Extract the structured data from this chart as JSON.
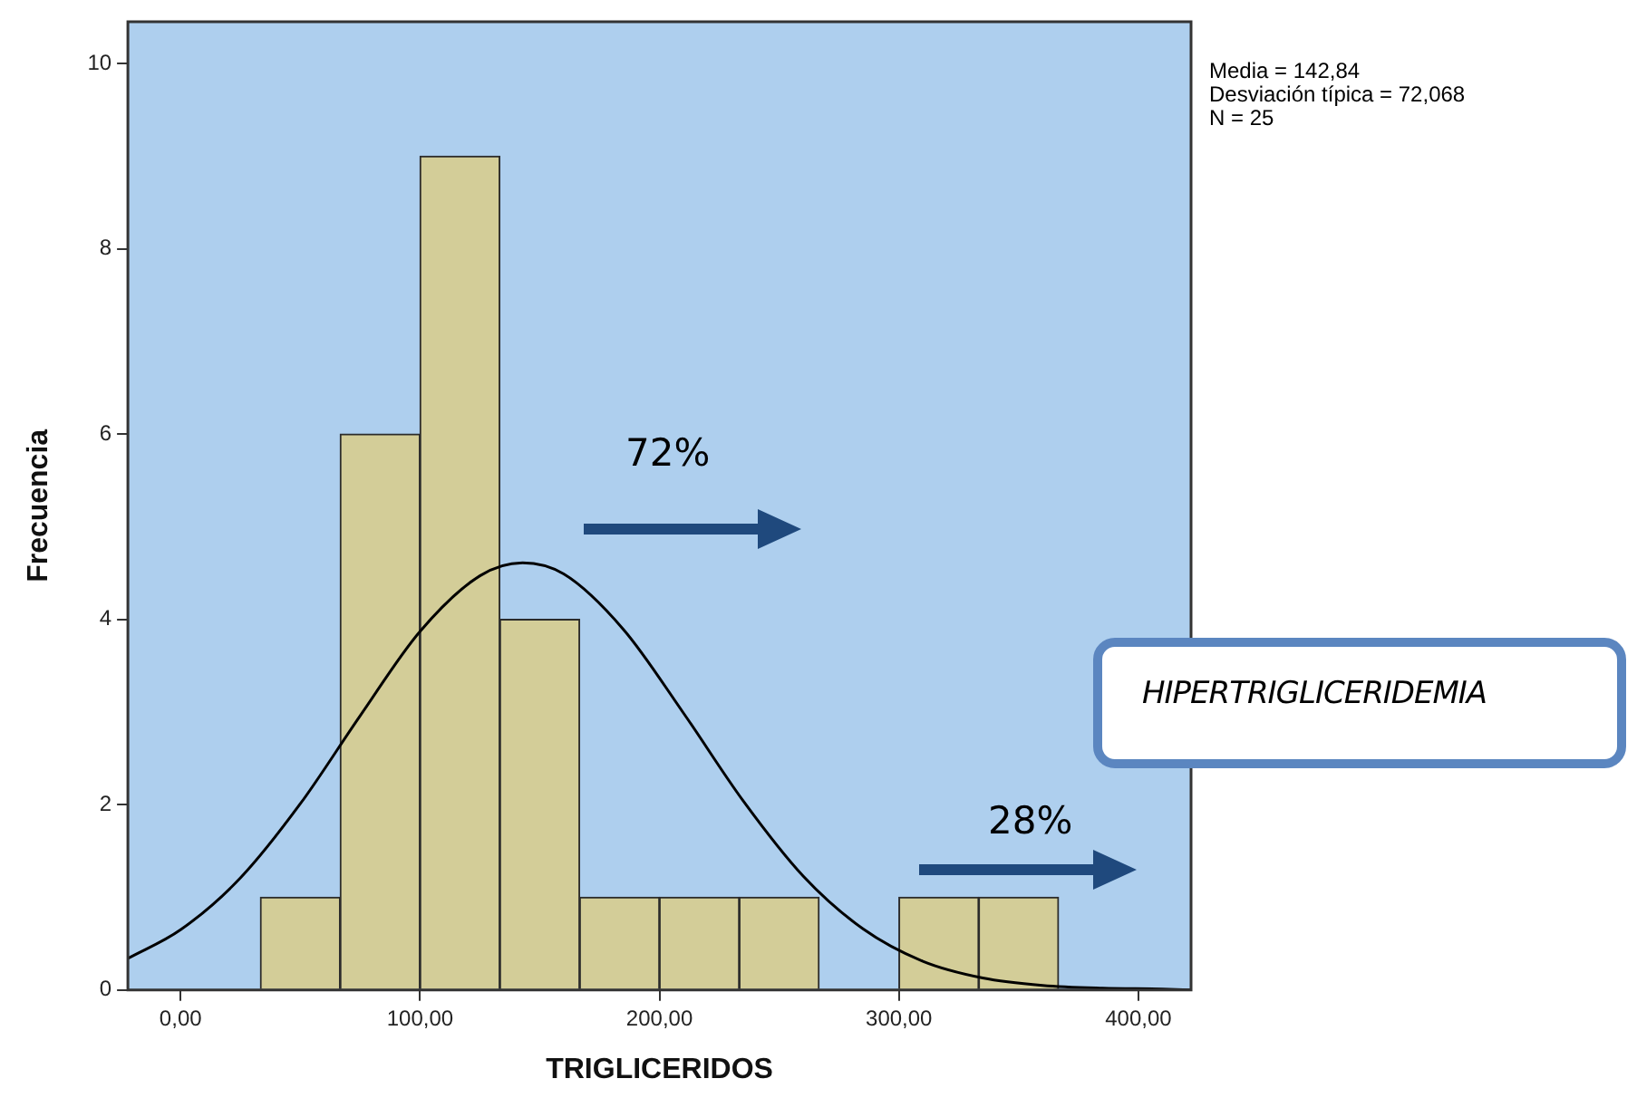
{
  "chart_data": {
    "type": "histogram",
    "xlabel": "TRIGLICERIDOS",
    "ylabel": "Frecuencia",
    "xlim": [
      -22,
      422
    ],
    "xticks": [
      {
        "value": 0,
        "label": "0,00"
      },
      {
        "value": 100,
        "label": "100,00"
      },
      {
        "value": 200,
        "label": "200,00"
      },
      {
        "value": 300,
        "label": "300,00"
      },
      {
        "value": 400,
        "label": "400,00"
      }
    ],
    "ylim": [
      0,
      10.45
    ],
    "yticks": [
      0,
      2,
      4,
      6,
      8,
      10
    ],
    "grid": false,
    "legend": false,
    "marker": "none",
    "series": [
      {
        "color": "#d3cd98",
        "bins": [
          33.33,
          66.67,
          100,
          133.33,
          166.67,
          200,
          233.33,
          266.67,
          300,
          333.33,
          366.67
        ],
        "values": [
          1,
          6,
          9,
          4,
          1,
          1,
          1,
          0,
          1,
          1
        ]
      },
      {
        "type": "line",
        "color": "#000000",
        "x": [
          -22,
          0,
          25,
          50,
          75,
          100,
          125,
          142.84,
          160,
          185,
          210,
          235,
          260,
          285,
          310,
          335,
          360,
          385,
          410,
          422
        ],
        "values": [
          0.34,
          0.65,
          1.21,
          2.01,
          2.96,
          3.87,
          4.47,
          4.61,
          4.49,
          3.89,
          2.99,
          2.04,
          1.23,
          0.66,
          0.31,
          0.13,
          0.05,
          0.02,
          0.01,
          0
        ]
      }
    ],
    "annotations": [
      "Media = 142,84",
      "Desviación típica = 72,068",
      "N = 25",
      "72%",
      "28%",
      "HIPERTRIGLICERIDEMIA"
    ]
  }
}
